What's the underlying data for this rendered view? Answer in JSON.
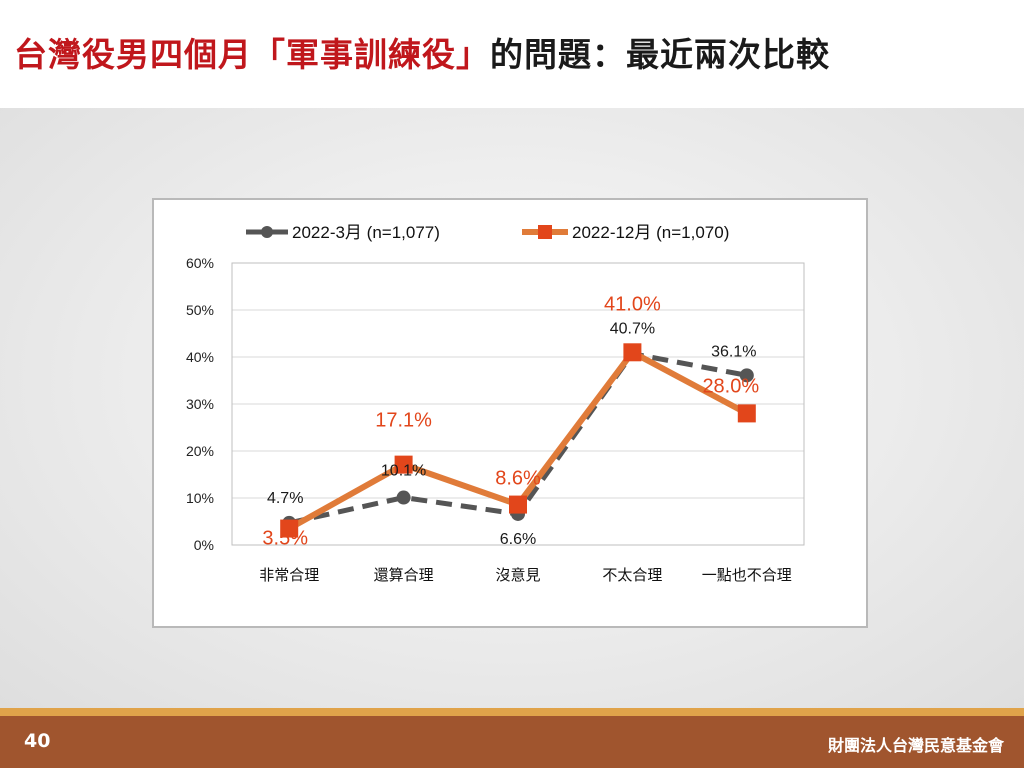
{
  "slide": {
    "title_red": "台灣役男四個月「軍事訓練役」",
    "title_black": "的問題：最近兩次比較",
    "page_number": "40",
    "organization": "財團法人台灣民意基金會"
  },
  "colors": {
    "series1": "#555555",
    "series2": "#e07b39",
    "marker2": "#e2461b",
    "label2": "#e2461b",
    "title_red": "#c0171c",
    "footer": "#a0552e",
    "footer_stripe": "#e0a34a"
  },
  "chart_data": {
    "type": "line",
    "categories": [
      "非常合理",
      "還算合理",
      "沒意見",
      "不太合理",
      "一點也不合理"
    ],
    "ylim": [
      0,
      60
    ],
    "yticks": [
      "0%",
      "10%",
      "20%",
      "30%",
      "40%",
      "50%",
      "60%"
    ],
    "xlabel": "",
    "ylabel": "",
    "grid": true,
    "legend": "top",
    "series": [
      {
        "name": "2022-3月  (n=1,077)",
        "values": [
          4.7,
          10.1,
          6.6,
          40.7,
          36.1
        ],
        "labels": [
          "4.7%",
          "10.1%",
          "6.6%",
          "40.7%",
          "36.1%"
        ],
        "style": "dashed",
        "marker": "circle"
      },
      {
        "name": "2022-12月  (n=1,070)",
        "values": [
          3.5,
          17.1,
          8.6,
          41.0,
          28.0
        ],
        "labels": [
          "3.5%",
          "17.1%",
          "8.6%",
          "41.0%",
          "28.0%"
        ],
        "style": "solid",
        "marker": "square"
      }
    ]
  }
}
